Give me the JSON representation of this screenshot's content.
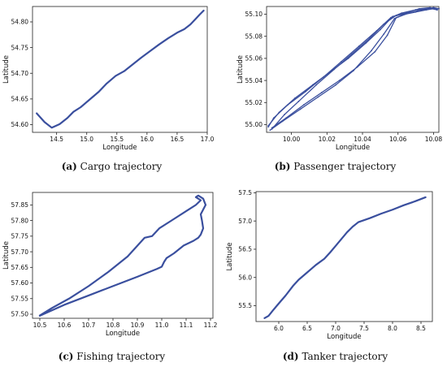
{
  "captions": [
    {
      "letter": "(a)",
      "text": "Cargo trajectory"
    },
    {
      "letter": "(b)",
      "text": "Passenger trajectory"
    },
    {
      "letter": "(c)",
      "text": "Fishing trajectory"
    },
    {
      "letter": "(d)",
      "text": "Tanker trajectory"
    }
  ],
  "chart_data": [
    {
      "type": "line",
      "xlabel": "Longitude",
      "ylabel": "Latitude",
      "xlim": [
        14.1,
        17.0
      ],
      "ylim": [
        54.585,
        54.83
      ],
      "xticks": [
        "14.5",
        "15.0",
        "15.5",
        "16.0",
        "16.5",
        "17.0"
      ],
      "yticks": [
        "54.60",
        "54.65",
        "54.70",
        "54.75",
        "54.80"
      ],
      "color": "#3a4f9e",
      "x": [
        14.17,
        14.3,
        14.42,
        14.55,
        14.68,
        14.78,
        14.9,
        15.05,
        15.2,
        15.33,
        15.48,
        15.62,
        15.76,
        15.9,
        16.05,
        16.2,
        16.35,
        16.5,
        16.62,
        16.72,
        16.8,
        16.88,
        16.94
      ],
      "y": [
        54.622,
        54.605,
        54.594,
        54.601,
        54.613,
        54.625,
        54.634,
        54.649,
        54.664,
        54.68,
        54.695,
        54.704,
        54.717,
        54.73,
        54.743,
        54.756,
        54.768,
        54.779,
        54.786,
        54.795,
        54.805,
        54.815,
        54.822
      ]
    },
    {
      "type": "line",
      "xlabel": "Longitude",
      "ylabel": "Latitude",
      "xlim": [
        9.986,
        10.083
      ],
      "ylim": [
        54.993,
        55.107
      ],
      "xticks": [
        "10.00",
        "10.02",
        "10.04",
        "10.06",
        "10.08"
      ],
      "yticks": [
        "55.00",
        "55.02",
        "55.04",
        "55.06",
        "55.08",
        "55.10"
      ],
      "color": "#3a4f9e",
      "series": [
        {
          "x": [
            9.988,
            9.995,
            10.005,
            10.015,
            10.025,
            10.035,
            10.045,
            10.052,
            10.058,
            10.064,
            10.07,
            10.076,
            10.08,
            10.082
          ],
          "y": [
            54.995,
            55.003,
            55.014,
            55.025,
            55.036,
            55.049,
            55.067,
            55.082,
            55.096,
            55.1,
            55.102,
            55.104,
            55.105,
            55.104
          ]
        },
        {
          "x": [
            10.082,
            10.078,
            10.072,
            10.066,
            10.059,
            10.052,
            10.044,
            10.034,
            10.024,
            10.014,
            10.004,
            9.996,
            9.989
          ],
          "y": [
            55.104,
            55.106,
            55.105,
            55.102,
            55.099,
            55.091,
            55.078,
            55.064,
            55.05,
            55.036,
            55.021,
            55.009,
            54.996
          ]
        },
        {
          "x": [
            9.989,
            9.997,
            10.007,
            10.017,
            10.027,
            10.037,
            10.047,
            10.054,
            10.059,
            10.066,
            10.074,
            10.08,
            10.083
          ],
          "y": [
            54.997,
            55.006,
            55.018,
            55.029,
            55.04,
            55.052,
            55.066,
            55.081,
            55.097,
            55.101,
            55.104,
            55.106,
            55.105
          ]
        },
        {
          "x": [
            10.083,
            10.077,
            10.07,
            10.062,
            10.056,
            10.048,
            10.038,
            10.028,
            10.018,
            10.008,
            9.998,
            9.99,
            9.987
          ],
          "y": [
            55.105,
            55.105,
            55.104,
            55.101,
            55.097,
            55.085,
            55.071,
            55.057,
            55.043,
            55.03,
            55.018,
            55.006,
            54.998
          ]
        },
        {
          "x": [
            9.987,
            9.993,
            10.002,
            10.012,
            10.022,
            10.032,
            10.042,
            10.05,
            10.057,
            10.063,
            10.071,
            10.079,
            10.082
          ],
          "y": [
            54.999,
            55.011,
            55.024,
            55.036,
            55.048,
            55.06,
            55.074,
            55.086,
            55.098,
            55.1,
            55.103,
            55.105,
            55.104
          ]
        }
      ]
    },
    {
      "type": "line",
      "xlabel": "Longitude",
      "ylabel": "Latitude",
      "xlim": [
        10.47,
        11.21
      ],
      "ylim": [
        57.487,
        57.89
      ],
      "xticks": [
        "10.5",
        "10.6",
        "10.7",
        "10.8",
        "10.9",
        "11.0",
        "11.1",
        "11.2"
      ],
      "yticks": [
        "57.50",
        "57.55",
        "57.60",
        "57.65",
        "57.70",
        "57.75",
        "57.80",
        "57.85"
      ],
      "color": "#3a4f9e",
      "x": [
        10.5,
        10.55,
        10.62,
        10.7,
        10.78,
        10.86,
        10.93,
        10.96,
        10.99,
        11.04,
        11.1,
        11.14,
        11.16,
        11.14,
        11.15,
        11.17,
        11.18,
        11.17,
        11.16,
        11.165,
        11.17,
        11.16,
        11.15,
        11.13,
        11.09,
        11.05,
        11.02,
        11.01,
        11.0,
        10.98,
        10.9,
        10.8,
        10.7,
        10.6,
        10.5
      ],
      "y": [
        57.496,
        57.52,
        57.55,
        57.59,
        57.635,
        57.685,
        57.745,
        57.75,
        57.775,
        57.8,
        57.83,
        57.85,
        57.865,
        57.875,
        57.88,
        57.87,
        57.85,
        57.835,
        57.82,
        57.8,
        57.775,
        57.755,
        57.745,
        57.735,
        57.72,
        57.695,
        57.68,
        57.668,
        57.652,
        57.645,
        57.62,
        57.59,
        57.56,
        57.53,
        57.495
      ]
    },
    {
      "type": "line",
      "xlabel": "Longitude",
      "ylabel": "Latitude",
      "xlim": [
        5.6,
        8.7
      ],
      "ylim": [
        55.22,
        57.52
      ],
      "xticks": [
        "6.0",
        "6.5",
        "7.0",
        "7.5",
        "8.0",
        "8.5"
      ],
      "yticks": [
        "55.5",
        "56.0",
        "56.5",
        "57.0",
        "57.5"
      ],
      "color": "#3a4f9e",
      "x": [
        5.75,
        5.82,
        5.9,
        6.0,
        6.12,
        6.25,
        6.35,
        6.5,
        6.65,
        6.8,
        6.9,
        7.0,
        7.1,
        7.2,
        7.3,
        7.4,
        7.6,
        7.8,
        8.0,
        8.2,
        8.4,
        8.58
      ],
      "y": [
        55.28,
        55.32,
        55.42,
        55.54,
        55.68,
        55.85,
        55.96,
        56.09,
        56.22,
        56.33,
        56.44,
        56.56,
        56.68,
        56.8,
        56.9,
        56.98,
        57.05,
        57.13,
        57.2,
        57.28,
        57.35,
        57.42
      ]
    }
  ]
}
